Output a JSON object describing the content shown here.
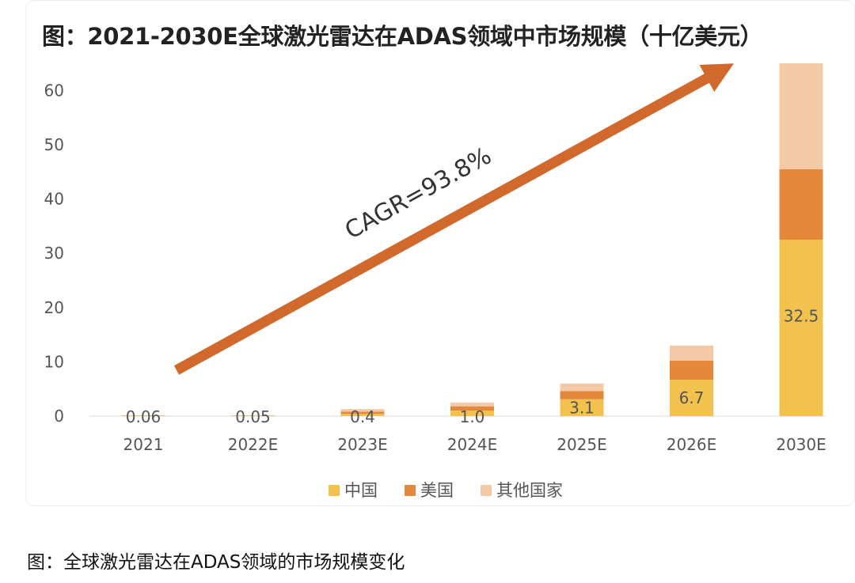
{
  "chart_data": {
    "type": "bar",
    "stacked": true,
    "title": "图：2021-2030E全球激光雷达在ADAS领域中市场规模（十亿美元）",
    "categories": [
      "2021",
      "2022E",
      "2023E",
      "2024E",
      "2025E",
      "2026E",
      "2030E"
    ],
    "series": [
      {
        "name": "中国",
        "color": "#f2c14e",
        "values": [
          0.06,
          0.05,
          0.4,
          1.0,
          3.1,
          6.7,
          32.5
        ]
      },
      {
        "name": "美国",
        "color": "#e4883b",
        "values": [
          0.05,
          0.05,
          0.4,
          0.8,
          1.5,
          3.5,
          13.0
        ]
      },
      {
        "name": "其他国家",
        "color": "#f3c9a6",
        "values": [
          0.04,
          0.04,
          0.5,
          0.7,
          1.4,
          2.8,
          19.5
        ]
      }
    ],
    "data_labels": [
      "0.06",
      "0.05",
      "0.4",
      "1.0",
      "3.1",
      "6.7",
      "32.5"
    ],
    "y_ticks": [
      0,
      10,
      20,
      30,
      40,
      50,
      60
    ],
    "ylim": [
      0,
      65
    ],
    "xlabel": "",
    "ylabel": "",
    "grid": false,
    "legend_position": "bottom",
    "annotation": {
      "text": "CAGR=93.8%",
      "color": "#d0692b"
    }
  },
  "caption": "图：全球激光雷达在ADAS领域的市场规模变化"
}
